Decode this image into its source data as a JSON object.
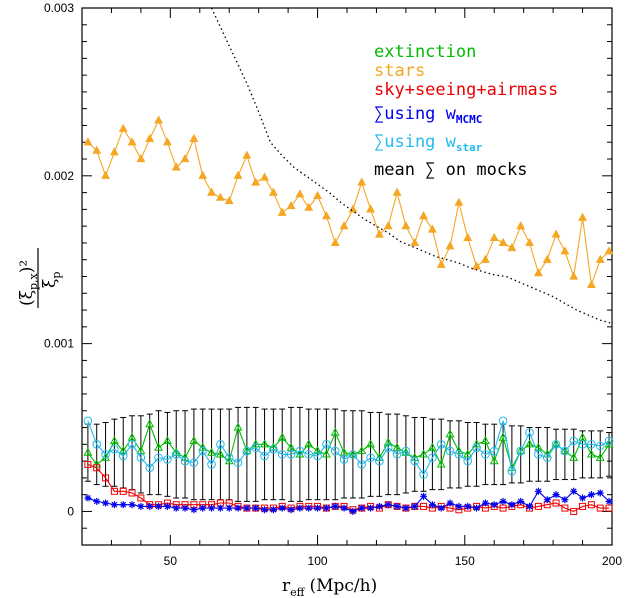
{
  "chart_data": {
    "type": "line",
    "title": "",
    "xlabel": "r",
    "xlabel_sub": "eff",
    "xlabel_units": "(Mpc/h)",
    "ylabel_num": "(ξ",
    "ylabel_num_sub": "p,x",
    "ylabel_num_sup": ")²",
    "ylabel_den": "ξ",
    "ylabel_den_sub": "p",
    "xlim": [
      20,
      200
    ],
    "ylim": [
      -0.0002,
      0.003
    ],
    "x_ticks": [
      50,
      100,
      150,
      200
    ],
    "x_tick_labels": [
      "50",
      "100",
      "150",
      "200"
    ],
    "y_ticks": [
      0,
      0.001,
      0.002,
      0.003
    ],
    "y_tick_labels": [
      "0",
      "0.001",
      "0.002",
      "0.003"
    ],
    "legend_position": "top-right",
    "legend": [
      {
        "text": "extinction",
        "color": "#00bb00"
      },
      {
        "text": "stars",
        "color": "#f5a623"
      },
      {
        "text": "sky+seeing+airmass",
        "color": "#ee0000"
      },
      {
        "text": "∑using w",
        "sub": "MCMC",
        "color": "#0000ee"
      },
      {
        "text": "∑using w",
        "sub": "star",
        "color": "#22bbee"
      },
      {
        "text": "mean ∑ on mocks",
        "color": "#000000"
      }
    ],
    "x": [
      22,
      25,
      28,
      31,
      34,
      37,
      40,
      43,
      46,
      49,
      52,
      55,
      58,
      61,
      64,
      67,
      70,
      73,
      76,
      79,
      82,
      85,
      88,
      91,
      94,
      97,
      100,
      103,
      106,
      109,
      112,
      115,
      118,
      121,
      124,
      127,
      130,
      133,
      136,
      139,
      142,
      145,
      148,
      151,
      154,
      157,
      160,
      163,
      166,
      169,
      172,
      175,
      178,
      181,
      184,
      187,
      190,
      193,
      196,
      199
    ],
    "series": [
      {
        "name": "stars",
        "style": "triangle",
        "color": "#f5a623",
        "values": [
          0.0022,
          0.00215,
          0.002,
          0.00214,
          0.00228,
          0.0022,
          0.0021,
          0.00222,
          0.00233,
          0.0022,
          0.00205,
          0.0021,
          0.00222,
          0.002,
          0.0019,
          0.00187,
          0.00185,
          0.002,
          0.00212,
          0.00196,
          0.00199,
          0.0019,
          0.00178,
          0.00182,
          0.00189,
          0.00181,
          0.00188,
          0.00176,
          0.0016,
          0.0017,
          0.0018,
          0.00196,
          0.0018,
          0.00165,
          0.0017,
          0.0019,
          0.0017,
          0.0016,
          0.00176,
          0.00168,
          0.00147,
          0.00158,
          0.00184,
          0.00163,
          0.00146,
          0.0015,
          0.00163,
          0.0016,
          0.00157,
          0.0017,
          0.0016,
          0.00142,
          0.0015,
          0.00165,
          0.00155,
          0.0014,
          0.00175,
          0.00135,
          0.0015,
          0.00155
        ]
      },
      {
        "name": "mean ∑ on mocks",
        "style": "dotted",
        "color": "#000000",
        "x": [
          64,
          68,
          72,
          76,
          80,
          84,
          88,
          92,
          96,
          100,
          104,
          108,
          112,
          116,
          120,
          124,
          128,
          132,
          136,
          140,
          144,
          148,
          152,
          156,
          160,
          164,
          168,
          172,
          176,
          180,
          184,
          188,
          192,
          196,
          200
        ],
        "values": [
          0.003,
          0.00285,
          0.0027,
          0.00255,
          0.00238,
          0.0022,
          0.00212,
          0.00205,
          0.002,
          0.00195,
          0.0019,
          0.00184,
          0.00179,
          0.00174,
          0.0017,
          0.00166,
          0.00161,
          0.00158,
          0.00155,
          0.00152,
          0.0015,
          0.00148,
          0.00145,
          0.00143,
          0.00141,
          0.0014,
          0.00137,
          0.00134,
          0.00131,
          0.00128,
          0.00124,
          0.0012,
          0.00117,
          0.00114,
          0.00112
        ]
      },
      {
        "name": "extinction",
        "style": "triangle",
        "color": "#00bb00",
        "values": [
          0.00035,
          0.00028,
          0.00032,
          0.00042,
          0.00036,
          0.00044,
          0.00036,
          0.00052,
          0.00038,
          0.00042,
          0.00035,
          0.00032,
          0.00042,
          0.00038,
          0.00035,
          0.00034,
          0.0003,
          0.0005,
          0.00036,
          0.0004,
          0.0004,
          0.00038,
          0.00044,
          0.00038,
          0.00034,
          0.0004,
          0.00036,
          0.00034,
          0.00047,
          0.00035,
          0.00034,
          0.00036,
          0.0004,
          0.00032,
          0.00041,
          0.00038,
          0.00035,
          0.00032,
          0.00034,
          0.00038,
          0.00028,
          0.00046,
          0.00036,
          0.00034,
          0.0004,
          0.00042,
          0.0003,
          0.00044,
          0.00026,
          0.00036,
          0.0004,
          0.00038,
          0.00034,
          0.0004,
          0.00036,
          0.00032,
          0.00044,
          0.00034,
          0.00032,
          0.0004
        ]
      },
      {
        "name": "∑using w_star",
        "style": "circle",
        "color": "#22bbee",
        "values": [
          0.00054,
          0.0004,
          0.00034,
          0.00037,
          0.00033,
          0.0004,
          0.00032,
          0.00026,
          0.00032,
          0.00031,
          0.00034,
          0.0003,
          0.00029,
          0.00036,
          0.00028,
          0.0004,
          0.00032,
          0.00029,
          0.00036,
          0.00038,
          0.00033,
          0.00037,
          0.00034,
          0.00034,
          0.00036,
          0.00034,
          0.00033,
          0.0004,
          0.00036,
          0.00031,
          0.00034,
          0.00028,
          0.00032,
          0.0003,
          0.00038,
          0.00034,
          0.00036,
          0.0003,
          0.00022,
          0.00032,
          0.0004,
          0.00036,
          0.00034,
          0.0003,
          0.00038,
          0.00034,
          0.00036,
          0.00054,
          0.00024,
          0.00036,
          0.00047,
          0.00034,
          0.00032,
          0.0004,
          0.00036,
          0.00042,
          0.0004,
          0.0004,
          0.00039,
          0.00042
        ]
      },
      {
        "name": "sky+seeing+airmass",
        "style": "square",
        "color": "#ee0000",
        "values": [
          0.00028,
          0.00026,
          0.0002,
          0.00012,
          0.00012,
          0.00011,
          8e-05,
          4e-05,
          4e-05,
          5e-05,
          4e-05,
          4e-05,
          4e-05,
          4e-05,
          4e-05,
          5e-05,
          5e-05,
          3e-05,
          2e-05,
          2e-05,
          2e-05,
          2e-05,
          3e-05,
          2e-05,
          3e-05,
          3e-05,
          3e-05,
          2e-05,
          3e-05,
          3e-05,
          1e-05,
          2e-05,
          3e-05,
          2e-05,
          4e-05,
          3e-05,
          2e-05,
          3e-05,
          3e-05,
          2e-05,
          3e-05,
          2e-05,
          1e-05,
          2e-05,
          3e-05,
          2e-05,
          3e-05,
          2e-05,
          3e-05,
          4e-05,
          2e-05,
          3e-05,
          4e-05,
          5e-05,
          2e-05,
          0.0,
          3e-05,
          4e-05,
          2e-05,
          2e-05
        ]
      },
      {
        "name": "∑using w_MCMC",
        "style": "star",
        "color": "#0000ee",
        "values": [
          8e-05,
          6e-05,
          5e-05,
          4e-05,
          4e-05,
          4e-05,
          3e-05,
          3e-05,
          3e-05,
          3e-05,
          2e-05,
          2e-05,
          1e-05,
          2e-05,
          2e-05,
          2e-05,
          2e-05,
          2e-05,
          2e-05,
          2e-05,
          1e-05,
          1e-05,
          2e-05,
          1e-05,
          2e-05,
          2e-05,
          2e-05,
          2e-05,
          3e-05,
          2e-05,
          0.0,
          2e-05,
          2e-05,
          3e-05,
          4e-05,
          3e-05,
          2e-05,
          3e-05,
          9e-05,
          4e-05,
          2e-05,
          5e-05,
          3e-05,
          3e-05,
          2e-05,
          5e-05,
          4e-05,
          6e-05,
          4e-05,
          6e-05,
          3e-05,
          0.00012,
          7e-05,
          0.0001,
          7e-05,
          0.00012,
          8e-05,
          0.0001,
          0.00011,
          6e-05
        ]
      }
    ],
    "error_bars": {
      "x": [
        22,
        25,
        28,
        31,
        34,
        37,
        40,
        43,
        46,
        49,
        52,
        55,
        58,
        61,
        64,
        67,
        70,
        73,
        76,
        79,
        82,
        85,
        88,
        91,
        94,
        97,
        100,
        103,
        106,
        109,
        112,
        115,
        118,
        121,
        124,
        127,
        130,
        133,
        136,
        139,
        142,
        145,
        148,
        151,
        154,
        157,
        160,
        163,
        166,
        169,
        172,
        175,
        178,
        181,
        184,
        187,
        190,
        193,
        196,
        199
      ],
      "mean": [
        0.00035,
        0.00034,
        0.00034,
        0.00035,
        0.00035,
        0.00035,
        0.00034,
        0.00034,
        0.00035,
        0.00034,
        0.00034,
        0.00034,
        0.00034,
        0.00034,
        0.00034,
        0.00034,
        0.00034,
        0.00034,
        0.00034,
        0.00034,
        0.00034,
        0.00034,
        0.00034,
        0.00034,
        0.00034,
        0.00034,
        0.00034,
        0.00034,
        0.00034,
        0.00034,
        0.00034,
        0.00034,
        0.00034,
        0.00034,
        0.00034,
        0.00034,
        0.00034,
        0.00034,
        0.00034,
        0.00034,
        0.00034,
        0.00034,
        0.00034,
        0.00034,
        0.00034,
        0.00034,
        0.00034,
        0.00034,
        0.00034,
        0.00034,
        0.00034,
        0.00034,
        0.00034,
        0.00034,
        0.00034,
        0.00034,
        0.00034,
        0.00034,
        0.00034,
        0.00034
      ],
      "err": [
        0.00017,
        0.00018,
        0.00019,
        0.0002,
        0.00021,
        0.00022,
        0.00023,
        0.00024,
        0.00025,
        0.00025,
        0.00026,
        0.00026,
        0.00027,
        0.00027,
        0.00027,
        0.00027,
        0.00027,
        0.00028,
        0.00028,
        0.00028,
        0.00027,
        0.00027,
        0.00027,
        0.00028,
        0.00028,
        0.00027,
        0.00027,
        0.00027,
        0.00027,
        0.00026,
        0.00026,
        0.00026,
        0.00025,
        0.00025,
        0.00024,
        0.00024,
        0.00023,
        0.00022,
        0.00022,
        0.00021,
        0.00021,
        0.0002,
        0.0002,
        0.00019,
        0.00019,
        0.00018,
        0.00018,
        0.00018,
        0.00017,
        0.00017,
        0.00016,
        0.00016,
        0.00016,
        0.00015,
        0.00015,
        0.00015,
        0.00014,
        0.00014,
        0.00014,
        0.00013
      ]
    }
  }
}
